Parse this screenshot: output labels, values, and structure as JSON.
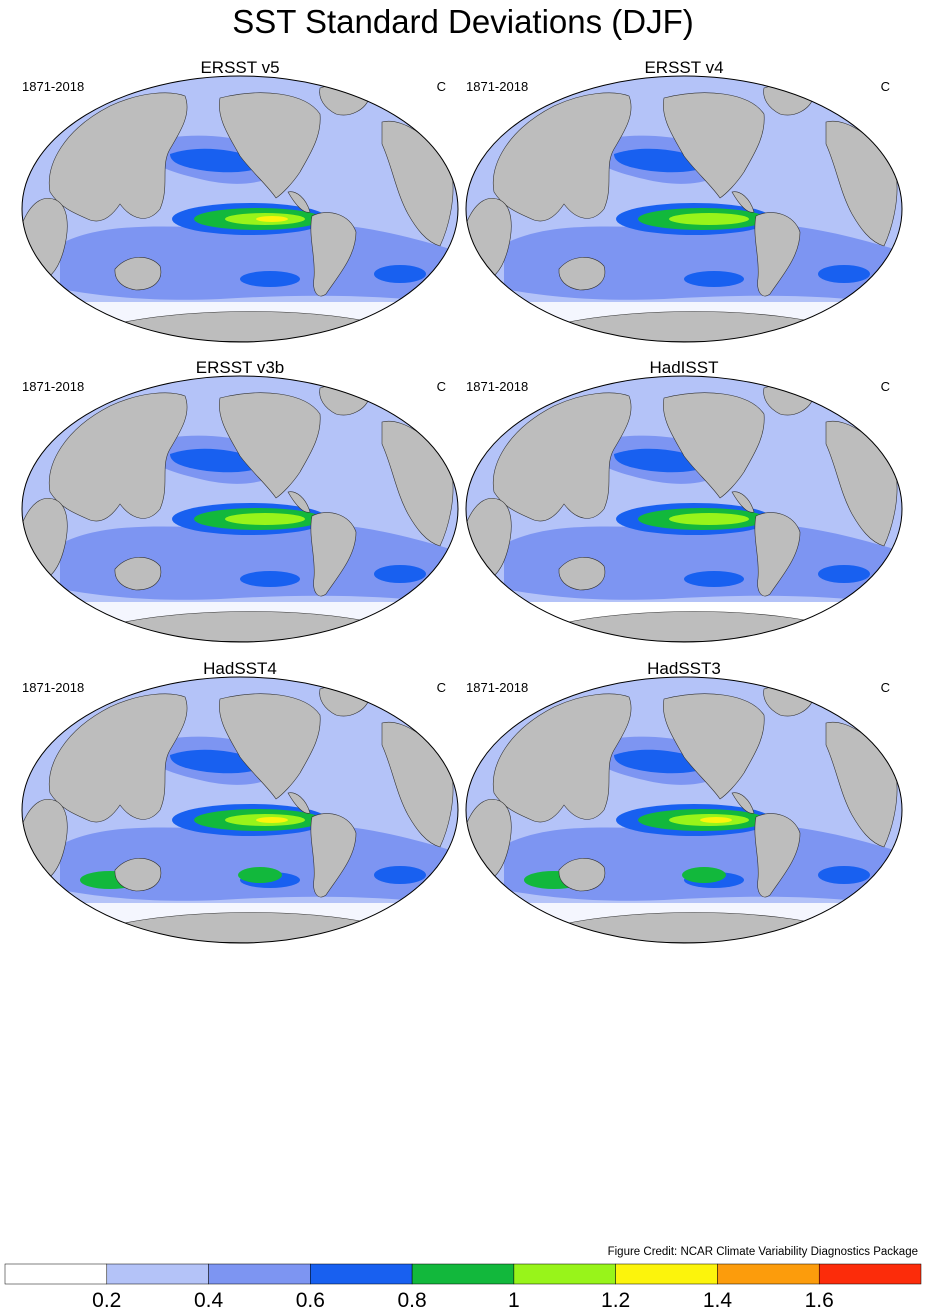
{
  "title": "SST Standard Deviations (DJF)",
  "panels": [
    {
      "title": "ERSST v5",
      "period": "1871-2018",
      "units": "C"
    },
    {
      "title": "ERSST v4",
      "period": "1871-2018",
      "units": "C"
    },
    {
      "title": "ERSST v3b",
      "period": "1871-2018",
      "units": "C"
    },
    {
      "title": "HadISST",
      "period": "1871-2018",
      "units": "C"
    },
    {
      "title": "HadSST4",
      "period": "1871-2018",
      "units": "C"
    },
    {
      "title": "HadSST3",
      "period": "1871-2018",
      "units": "C"
    }
  ],
  "credit": "Figure Credit: NCAR Climate Variability Diagnostics Package",
  "colorbar": {
    "labels": [
      "0.2",
      "0.4",
      "0.6",
      "0.8",
      "1",
      "1.2",
      "1.4",
      "1.6"
    ],
    "colors": [
      "#ffffff",
      "#b4c3f8",
      "#7d95f2",
      "#1860f0",
      "#12b83c",
      "#98f41a",
      "#fcf40c",
      "#fc9c0c",
      "#fc2c0a"
    ]
  },
  "colors": {
    "land": "#bdbdbd",
    "map_border": "#000000"
  }
}
